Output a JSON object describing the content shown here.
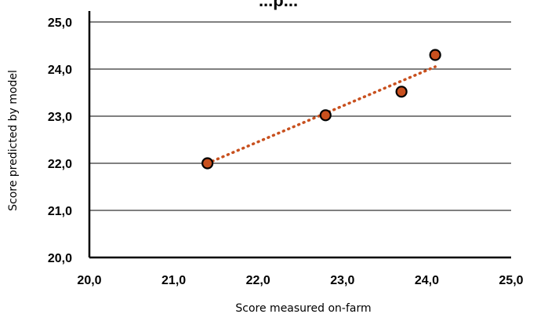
{
  "chart_data": {
    "type": "scatter",
    "title": "...p...",
    "xlabel": "Score measured on-farm",
    "ylabel": "Score predicted by model",
    "xlim": [
      20,
      25
    ],
    "ylim": [
      20,
      25
    ],
    "x_ticks": [
      "20,0",
      "21,0",
      "22,0",
      "23,0",
      "24,0",
      "25,0"
    ],
    "y_ticks": [
      "20,0",
      "21,0",
      "22,0",
      "23,0",
      "24,0",
      "25,0"
    ],
    "x": [
      21.4,
      22.8,
      23.7,
      24.1
    ],
    "y": [
      22.0,
      23.02,
      23.52,
      24.3
    ],
    "trendline": {
      "x": [
        21.4,
        24.1
      ],
      "y": [
        22.0,
        24.05
      ],
      "style": "dotted"
    },
    "grid": "horizontal",
    "colors": {
      "marker_fill": "#C8501E",
      "marker_stroke": "#000000",
      "trendline": "#C8501E"
    }
  }
}
